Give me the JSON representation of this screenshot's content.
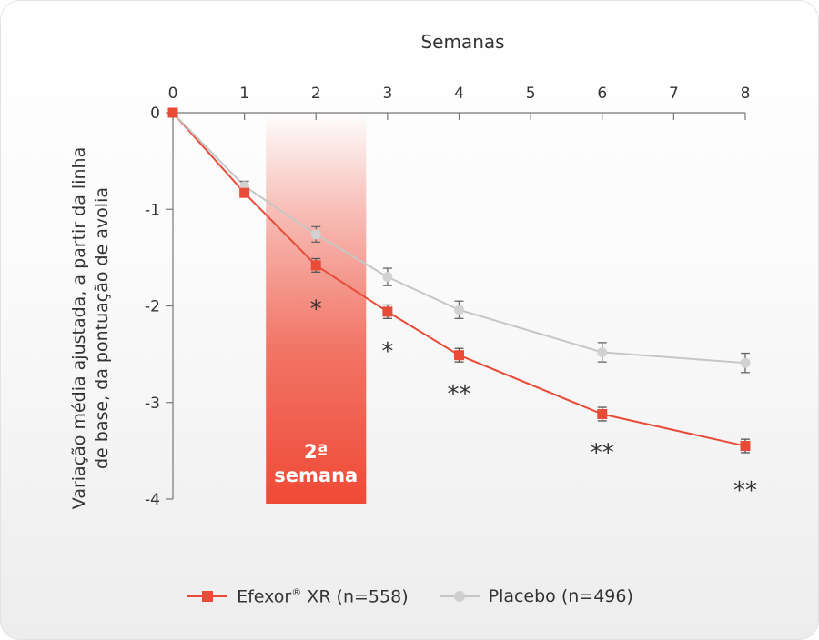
{
  "chart_data": {
    "type": "line",
    "title": "",
    "xlabel": "Semanas",
    "ylabel_line1": "Variação média ajustada, a partir da linha",
    "ylabel_line2": "de base, da pontuação de avolia",
    "x_ticks": [
      0,
      1,
      2,
      3,
      4,
      5,
      6,
      7,
      8
    ],
    "y_ticks": [
      0,
      -1,
      -2,
      -3,
      -4
    ],
    "xlim": [
      0,
      8
    ],
    "ylim": [
      -4,
      0
    ],
    "grid": false,
    "legend_position": "bottom",
    "highlight": {
      "x_from": 1.3,
      "x_to": 2.7,
      "label_line1": "2ª",
      "label_line2": "semana",
      "color": "#f04a36"
    },
    "series": [
      {
        "name": "Efexor",
        "name_suffix": "XR (n=558)",
        "registered": "®",
        "color": "#e84b37",
        "marker": "square",
        "points": [
          {
            "x": 0,
            "y": 0,
            "err": 0
          },
          {
            "x": 1,
            "y": -0.83,
            "err": 0.04
          },
          {
            "x": 2,
            "y": -1.58,
            "err": 0.07
          },
          {
            "x": 3,
            "y": -2.06,
            "err": 0.07
          },
          {
            "x": 4,
            "y": -2.51,
            "err": 0.07
          },
          {
            "x": 6,
            "y": -3.12,
            "err": 0.07
          },
          {
            "x": 8,
            "y": -3.45,
            "err": 0.07
          }
        ]
      },
      {
        "name": "Placebo (n=496)",
        "color": "#c6c6c6",
        "marker": "circle",
        "points": [
          {
            "x": 0,
            "y": 0,
            "err": 0
          },
          {
            "x": 1,
            "y": -0.76,
            "err": 0.05
          },
          {
            "x": 2,
            "y": -1.26,
            "err": 0.08
          },
          {
            "x": 3,
            "y": -1.7,
            "err": 0.09
          },
          {
            "x": 4,
            "y": -2.04,
            "err": 0.09
          },
          {
            "x": 6,
            "y": -2.48,
            "err": 0.1
          },
          {
            "x": 8,
            "y": -2.59,
            "err": 0.1
          }
        ]
      }
    ],
    "annotations": [
      {
        "x": 2,
        "y": -1.98,
        "text": "*"
      },
      {
        "x": 3,
        "y": -2.42,
        "text": "*"
      },
      {
        "x": 4,
        "y": -2.86,
        "text": "**"
      },
      {
        "x": 6,
        "y": -3.47,
        "text": "**"
      },
      {
        "x": 8,
        "y": -3.86,
        "text": "**"
      }
    ]
  }
}
